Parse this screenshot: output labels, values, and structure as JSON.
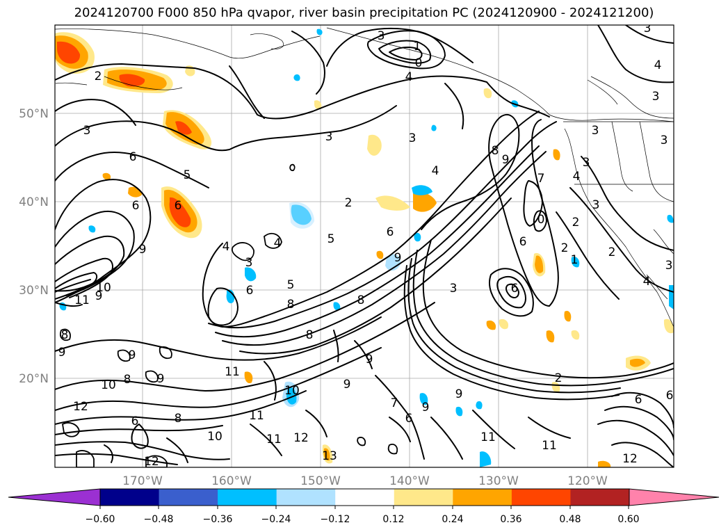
{
  "title": "2024120700 F000 850 hPa qvapor, river basin precipitation PC (2024120900 - 2024121200)",
  "lat_ticks": [
    "50°N",
    "40°N",
    "30°N",
    "20°N"
  ],
  "lon_ticks": [
    "170°W",
    "160°W",
    "150°W",
    "140°W",
    "130°W",
    "120°W"
  ],
  "contour_labels": [
    "1",
    "0",
    "3",
    "2",
    "4",
    "3",
    "3",
    "3",
    "3",
    "3",
    "6",
    "5",
    "6",
    "6",
    "9",
    "9",
    "10",
    "11",
    "4",
    "3",
    "6",
    "2",
    "4",
    "5",
    "6",
    "9",
    "8",
    "8",
    "8",
    "8",
    "9",
    "9",
    "9",
    "10",
    "12",
    "11",
    "12",
    "9",
    "10",
    "8",
    "6",
    "7",
    "11",
    "11",
    "12",
    "13",
    "6",
    "10",
    "8",
    "9",
    "9",
    "6",
    "6",
    "3",
    "6",
    "4",
    "2",
    "0",
    "2",
    "3",
    "2",
    "1",
    "3",
    "3",
    "4",
    "3",
    "4",
    "8",
    "9",
    "7",
    "2",
    "6",
    "4",
    "5",
    "3",
    "11",
    "12",
    "11",
    "9"
  ],
  "colorbar": {
    "tick_labels": [
      "−0.60",
      "−0.48",
      "−0.36",
      "−0.24",
      "−0.12",
      "0.12",
      "0.24",
      "0.36",
      "0.48",
      "0.60"
    ],
    "colors": [
      "#9b30d2",
      "#00008b",
      "#3a5fcd",
      "#00bfff",
      "#b0e2ff",
      "#ffffff",
      "#ffe88a",
      "#ffa500",
      "#ff4500",
      "#b22222",
      "#ff82ab"
    ]
  }
}
